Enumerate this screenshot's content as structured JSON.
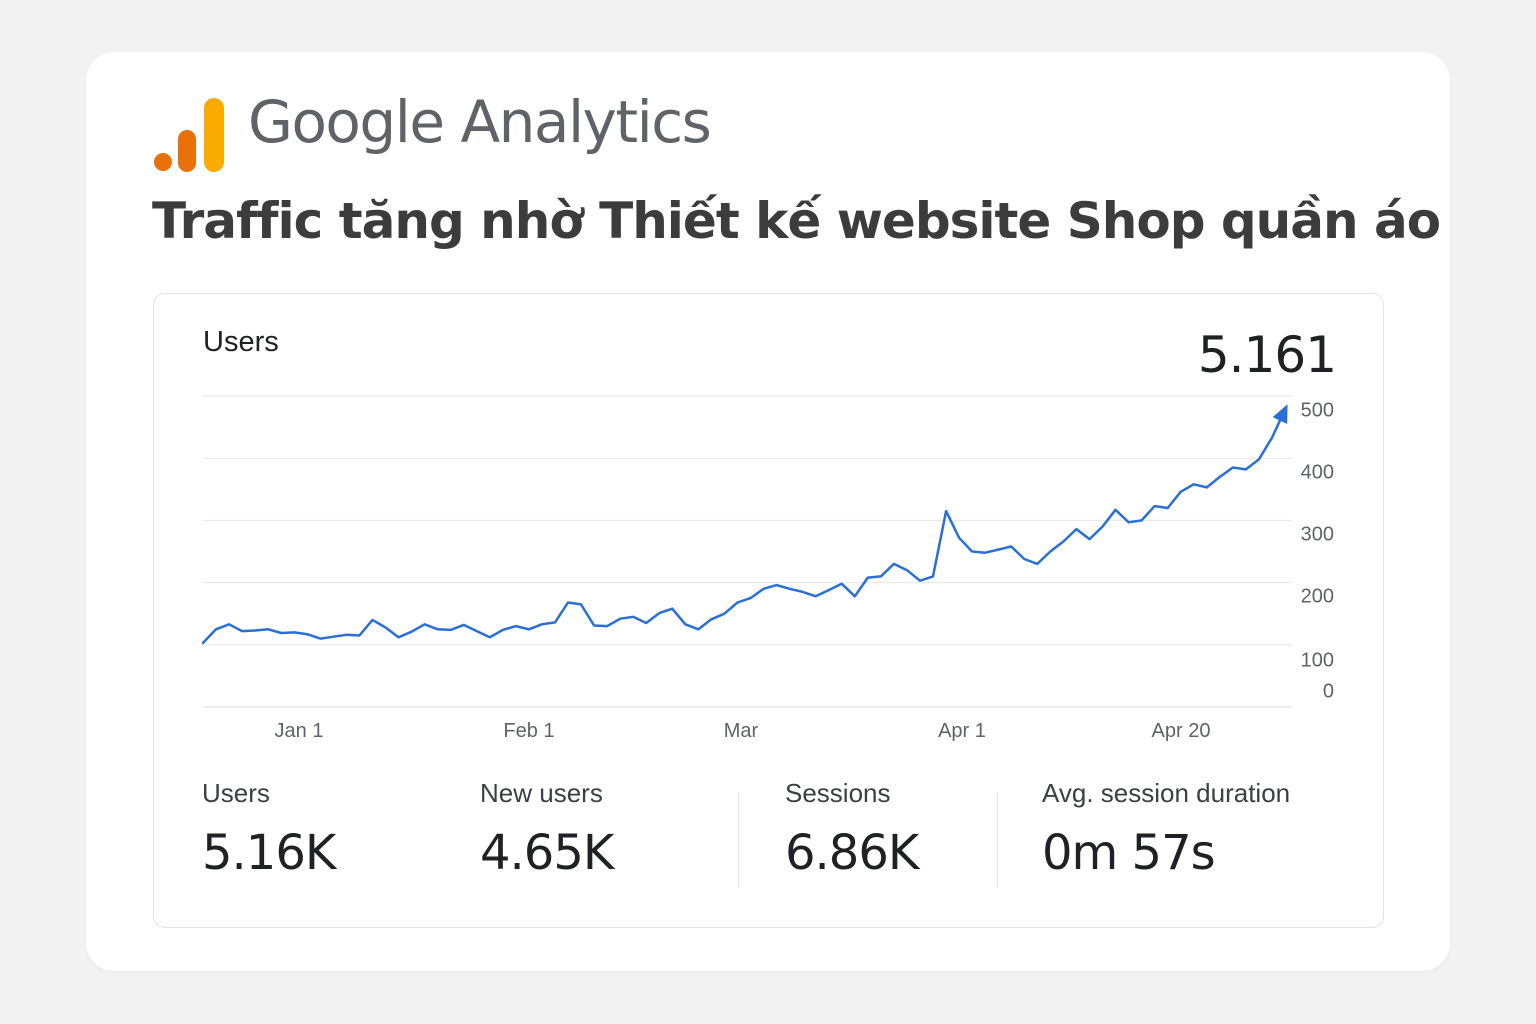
{
  "brand": {
    "name": "Google Analytics",
    "colors": {
      "bar_dark": "#e8710a",
      "bar_mid": "#f57c00",
      "bar_light": "#f9ab00"
    }
  },
  "headline": "Traffic tăng nhờ Thiết kế website Shop quần áo",
  "card": {
    "metric_label": "Users",
    "metric_total": "5.161"
  },
  "chart_data": {
    "type": "line",
    "series": [
      {
        "color": "#2a6fd6",
        "values": [
          103,
          125,
          133,
          122,
          123,
          125,
          119,
          120,
          117,
          110,
          113,
          116,
          115,
          140,
          128,
          112,
          121,
          133,
          125,
          124,
          132,
          122,
          112,
          124,
          130,
          125,
          133,
          136,
          168,
          165,
          131,
          130,
          142,
          145,
          135,
          151,
          158,
          133,
          125,
          141,
          150,
          168,
          175,
          190,
          196,
          190,
          185,
          178,
          188,
          198,
          178,
          208,
          210,
          230,
          220,
          203,
          210,
          315,
          272,
          250,
          248,
          253,
          258,
          238,
          230,
          250,
          266,
          286,
          270,
          290,
          317,
          297,
          300,
          323,
          320,
          346,
          358,
          353,
          370,
          385,
          382,
          398,
          433,
          478
        ],
        "end_marker": "arrow"
      }
    ],
    "x_ticks": [
      "Jan 1",
      "Feb 1",
      "Mar",
      "Apr 1",
      "Apr 20"
    ],
    "y_ticks": [
      "0",
      "100",
      "200",
      "300",
      "400",
      "500"
    ],
    "ylim": [
      0,
      500
    ],
    "grid": true
  },
  "stats": [
    {
      "label": "Users",
      "value": "5.16K"
    },
    {
      "label": "New users",
      "value": "4.65K"
    },
    {
      "label": "Sessions",
      "value": "6.86K"
    },
    {
      "label": "Avg. session duration",
      "value": "0m 57s"
    }
  ]
}
